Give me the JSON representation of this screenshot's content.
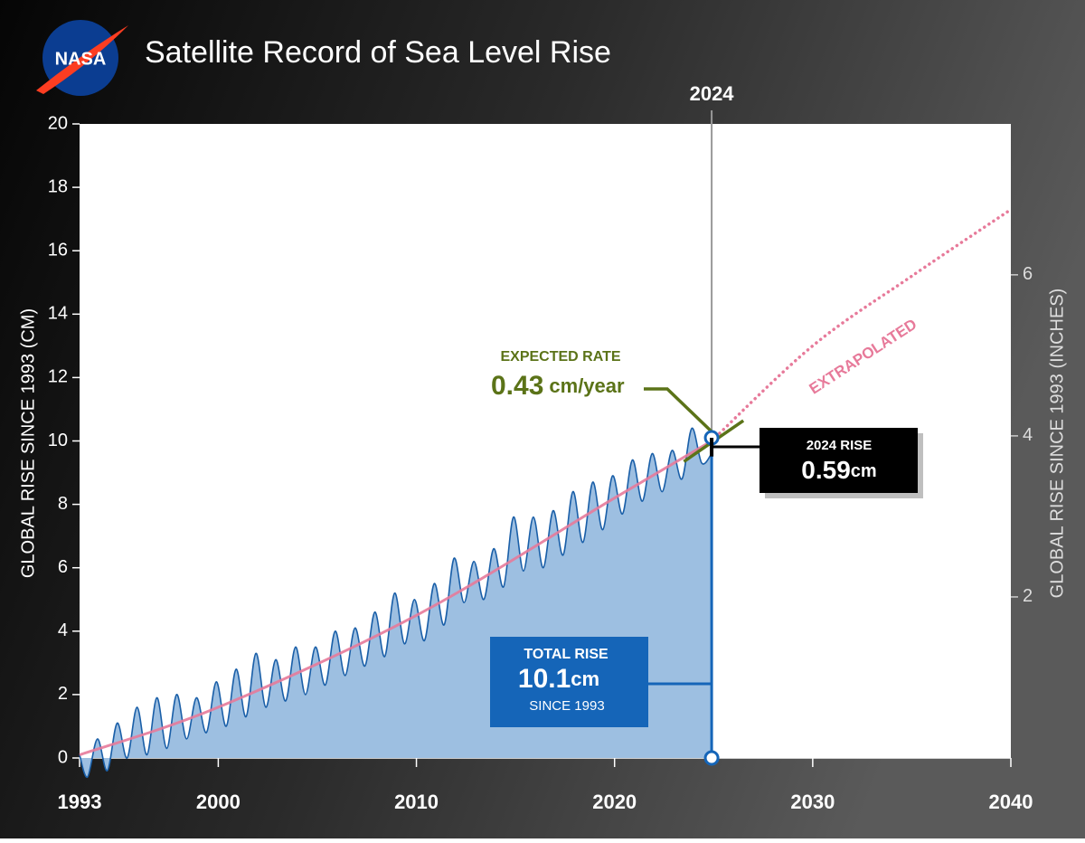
{
  "chart_data": {
    "type": "area",
    "logo_text": "NASA",
    "title": "Satellite Record of Sea Level Rise",
    "ylabel": "GLOBAL RISE SINCE 1993 (CM)",
    "y2label": "GLOBAL RISE SINCE 1993 (INCHES)",
    "xlim": [
      1993,
      2040
    ],
    "xticks": [
      1993,
      2000,
      2010,
      2020,
      2030,
      2040
    ],
    "ylim": [
      0,
      20
    ],
    "yticks": [
      0,
      2,
      4,
      6,
      8,
      10,
      12,
      14,
      16,
      18,
      20
    ],
    "y2lim": [
      0,
      7.874
    ],
    "y2ticks": [
      2,
      4,
      6
    ],
    "series": [
      {
        "color": "#1a5fa8",
        "fill": "#9dbfe1",
        "x": [
          1993,
          1993.4,
          1993.9,
          1994.4,
          1994.9,
          1995.4,
          1995.9,
          1996.4,
          1996.9,
          1997.4,
          1997.9,
          1998.4,
          1998.9,
          1999.4,
          1999.9,
          2000.4,
          2000.9,
          2001.4,
          2001.9,
          2002.4,
          2002.9,
          2003.4,
          2003.9,
          2004.4,
          2004.9,
          2005.4,
          2005.9,
          2006.4,
          2006.9,
          2007.4,
          2007.9,
          2008.4,
          2008.9,
          2009.4,
          2009.9,
          2010.4,
          2010.9,
          2011.4,
          2011.9,
          2012.4,
          2012.9,
          2013.4,
          2013.9,
          2014.4,
          2014.9,
          2015.4,
          2015.9,
          2016.4,
          2016.9,
          2017.4,
          2017.9,
          2018.4,
          2018.9,
          2019.4,
          2019.9,
          2020.4,
          2020.9,
          2021.4,
          2021.9,
          2022.4,
          2022.9,
          2023.4,
          2023.9,
          2024.4,
          2024.9
        ],
        "values": [
          0.1,
          -0.6,
          0.6,
          -0.4,
          1.1,
          0.0,
          1.6,
          0.1,
          1.9,
          0.3,
          2.0,
          0.6,
          1.9,
          0.8,
          2.4,
          1.0,
          2.8,
          1.3,
          3.3,
          1.6,
          3.1,
          1.8,
          3.5,
          2.0,
          3.5,
          2.3,
          4.0,
          2.6,
          4.1,
          2.9,
          4.6,
          3.2,
          5.2,
          3.6,
          5.0,
          3.7,
          5.5,
          4.2,
          6.3,
          4.9,
          6.2,
          5.0,
          6.6,
          5.4,
          7.6,
          5.9,
          7.6,
          6.0,
          7.8,
          6.4,
          8.4,
          6.8,
          8.7,
          7.2,
          8.9,
          7.7,
          9.4,
          8.1,
          9.6,
          8.4,
          9.7,
          8.8,
          10.4,
          9.3,
          9.6
        ]
      }
    ],
    "trend": {
      "color": "#e77a9a",
      "x": [
        1993,
        2000,
        2010,
        2020,
        2024.9
      ],
      "values": [
        0.1,
        1.6,
        4.5,
        8.2,
        10.0
      ]
    },
    "extrapolated": {
      "label": "EXTRAPOLATED",
      "color": "#e77a9a",
      "x": [
        2024.9,
        2030,
        2035,
        2040
      ],
      "values": [
        10.0,
        13.0,
        15.2,
        17.3
      ]
    },
    "rate": {
      "label": "EXPECTED RATE",
      "value": 0.43,
      "unit": "cm/year",
      "color": "#5b7318",
      "x": [
        2023.5,
        2026.5
      ],
      "values": [
        9.35,
        10.64
      ]
    },
    "marker": {
      "value": 2024.9,
      "label": "2024"
    },
    "total_rise": {
      "label": "TOTAL RISE",
      "value": 10.1,
      "unit": "cm",
      "note": "SINCE 1993"
    },
    "rise_2024": {
      "label": "2024 RISE",
      "value": 0.59,
      "unit": "cm"
    }
  }
}
